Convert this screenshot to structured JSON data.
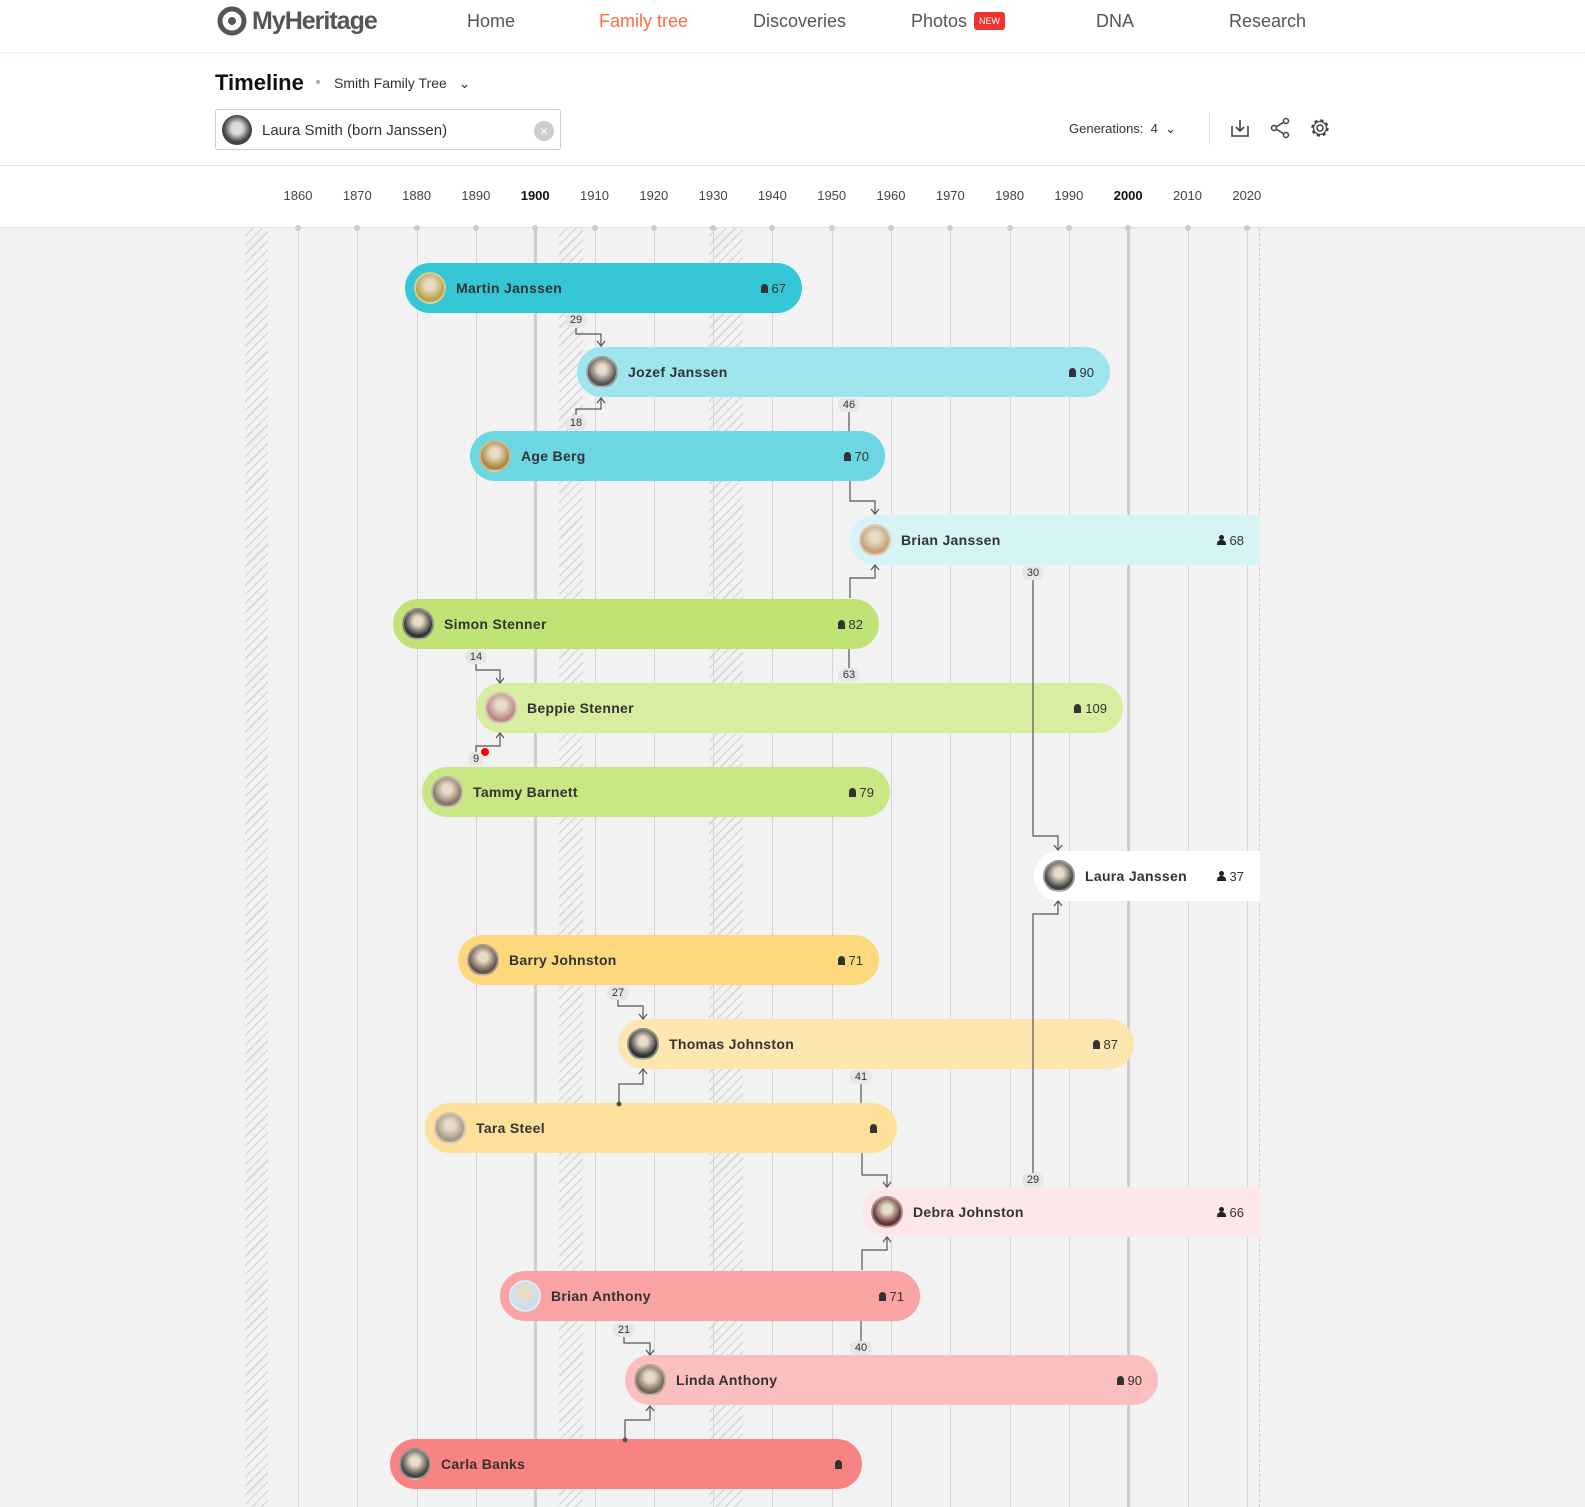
{
  "nav": {
    "logo": "MyHeritage",
    "items": [
      {
        "label": "Home"
      },
      {
        "label": "Family tree",
        "active": true
      },
      {
        "label": "Discoveries"
      },
      {
        "label": "Photos",
        "badge": "NEW"
      },
      {
        "label": "DNA"
      },
      {
        "label": "Research"
      }
    ],
    "active_color": "#ff6c3e"
  },
  "page": {
    "title": "Timeline",
    "tree": "Smith Family Tree",
    "person": "Laura Smith (born Janssen)",
    "generations_label": "Generations:",
    "generations": "4"
  },
  "tools": [
    "download-icon",
    "share-icon",
    "settings-icon"
  ],
  "years": [
    "1860",
    "1870",
    "1880",
    "1890",
    "1900",
    "1910",
    "1920",
    "1930",
    "1940",
    "1950",
    "1960",
    "1970",
    "1980",
    "1990",
    "2000",
    "2010",
    "2020"
  ],
  "people": [
    {
      "name": "Martin Janssen",
      "age": "67",
      "status": "deceased",
      "color": "#35c6d6"
    },
    {
      "name": "Jozef Janssen",
      "age": "90",
      "status": "deceased",
      "color": "#9ee5ee"
    },
    {
      "name": "Age Berg",
      "age": "70",
      "status": "deceased",
      "color": "#6dd6e3"
    },
    {
      "name": "Brian Janssen",
      "age": "68",
      "status": "living",
      "color": "#d6f3f6"
    },
    {
      "name": "Simon Stenner",
      "age": "82",
      "status": "deceased",
      "color": "#bfe374"
    },
    {
      "name": "Beppie Stenner",
      "age": "109",
      "status": "deceased",
      "color": "#d7eda0"
    },
    {
      "name": "Tammy Barnett",
      "age": "79",
      "status": "deceased",
      "color": "#c9e885"
    },
    {
      "name": "Laura Janssen",
      "age": "37",
      "status": "living",
      "color": "#ffffff"
    },
    {
      "name": "Barry Johnston",
      "age": "71",
      "status": "deceased",
      "color": "#fdd87c"
    },
    {
      "name": "Thomas Johnston",
      "age": "87",
      "status": "deceased",
      "color": "#fde6af"
    },
    {
      "name": "Tara Steel",
      "age": "",
      "status": "deceased",
      "color": "#fde09a"
    },
    {
      "name": "Debra Johnston",
      "age": "66",
      "status": "living",
      "color": "#fde7e9"
    },
    {
      "name": "Brian Anthony",
      "age": "71",
      "status": "deceased",
      "color": "#f9a3a3"
    },
    {
      "name": "Linda Anthony",
      "age": "90",
      "status": "deceased",
      "color": "#fbbfc0"
    },
    {
      "name": "Carla Banks",
      "age": "",
      "status": "deceased",
      "color": "#f98282"
    }
  ],
  "connector_labels": [
    "29",
    "18",
    "46",
    "30",
    "14",
    "63",
    "9",
    "27",
    "41",
    "29",
    "21",
    "40"
  ]
}
